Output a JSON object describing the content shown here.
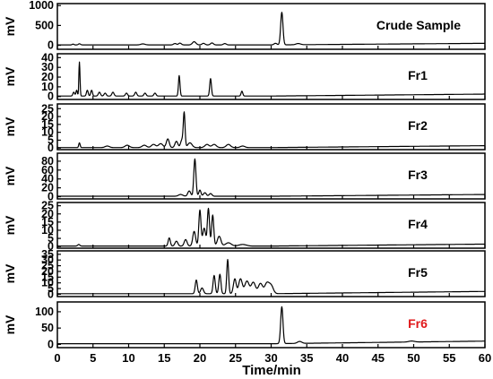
{
  "chart_data": {
    "type": "line",
    "xlabel": "Time/min",
    "xlim": [
      0,
      60
    ],
    "xticks": [
      0,
      5,
      10,
      15,
      20,
      25,
      30,
      35,
      40,
      45,
      50,
      55,
      60
    ],
    "colors": {
      "line": "#000000",
      "frame": "#000000",
      "fr6_label": "#e0191b",
      "label": "#000000"
    },
    "panels": [
      {
        "name": "Crude Sample",
        "label_color": "#000000",
        "ylabel": "mV",
        "ylim": [
          -100,
          1050
        ],
        "yticks": [
          0,
          500,
          1000
        ],
        "baseline": 10,
        "peaks": [
          [
            2.2,
            20,
            0.12
          ],
          [
            3.1,
            30,
            0.15
          ],
          [
            12,
            25,
            0.3
          ],
          [
            16.5,
            35,
            0.2
          ],
          [
            17.2,
            45,
            0.2
          ],
          [
            19.2,
            80,
            0.25
          ],
          [
            20.5,
            40,
            0.2
          ],
          [
            21.7,
            50,
            0.2
          ],
          [
            23.5,
            35,
            0.2
          ],
          [
            30.6,
            40,
            0.2
          ],
          [
            31.5,
            820,
            0.16
          ],
          [
            33.8,
            30,
            0.3
          ]
        ]
      },
      {
        "name": "Fr1",
        "label_color": "#000000",
        "ylabel": "mV",
        "ylim": [
          -3,
          44
        ],
        "yticks": [
          0,
          10,
          20,
          30,
          40
        ],
        "baseline": 0.5,
        "peaks": [
          [
            2.3,
            4,
            0.12
          ],
          [
            2.7,
            6,
            0.1
          ],
          [
            3.1,
            35,
            0.08
          ],
          [
            4.2,
            6,
            0.12
          ],
          [
            4.8,
            6,
            0.12
          ],
          [
            5.9,
            4,
            0.15
          ],
          [
            6.7,
            3,
            0.15
          ],
          [
            7.8,
            4,
            0.15
          ],
          [
            9.7,
            3,
            0.15
          ],
          [
            11,
            4,
            0.15
          ],
          [
            12.3,
            3,
            0.15
          ],
          [
            13.7,
            3,
            0.15
          ],
          [
            17.1,
            21,
            0.11
          ],
          [
            21.5,
            18,
            0.12
          ],
          [
            25.9,
            5,
            0.12
          ]
        ]
      },
      {
        "name": "Fr2",
        "label_color": "#000000",
        "ylabel": "mV",
        "ylim": [
          -1,
          28
        ],
        "yticks": [
          0,
          5,
          10,
          15,
          20,
          25
        ],
        "baseline": 0.3,
        "peaks": [
          [
            3.1,
            3,
            0.1
          ],
          [
            7,
            1,
            0.3
          ],
          [
            9.8,
            1.5,
            0.3
          ],
          [
            12.2,
            1.5,
            0.3
          ],
          [
            13.5,
            2,
            0.3
          ],
          [
            14.5,
            2.5,
            0.3
          ],
          [
            15.5,
            5.5,
            0.2
          ],
          [
            16.7,
            4,
            0.2
          ],
          [
            17.5,
            5,
            0.2
          ],
          [
            17.8,
            21,
            0.12
          ],
          [
            18.6,
            3,
            0.3
          ],
          [
            21,
            2,
            0.3
          ],
          [
            22,
            2,
            0.3
          ],
          [
            24,
            2,
            0.3
          ],
          [
            26,
            1,
            0.3
          ]
        ]
      },
      {
        "name": "Fr3",
        "label_color": "#000000",
        "ylabel": "mV",
        "ylim": [
          -5,
          98
        ],
        "yticks": [
          0,
          20,
          40,
          60,
          80
        ],
        "baseline": 1,
        "peaks": [
          [
            17.3,
            4,
            0.3
          ],
          [
            18.5,
            12,
            0.2
          ],
          [
            19.3,
            84,
            0.15
          ],
          [
            20,
            14,
            0.15
          ],
          [
            20.7,
            8,
            0.2
          ],
          [
            21.5,
            6,
            0.2
          ]
        ]
      },
      {
        "name": "Fr4",
        "label_color": "#000000",
        "ylabel": "mV",
        "ylim": [
          -1,
          27
        ],
        "yticks": [
          0,
          5,
          10,
          15,
          20,
          25
        ],
        "baseline": 0.3,
        "peaks": [
          [
            3,
            1,
            0.15
          ],
          [
            15.7,
            5,
            0.15
          ],
          [
            16.7,
            3,
            0.2
          ],
          [
            18,
            4,
            0.2
          ],
          [
            19.2,
            9,
            0.2
          ],
          [
            20,
            22,
            0.15
          ],
          [
            20.6,
            11,
            0.2
          ],
          [
            21.2,
            23,
            0.15
          ],
          [
            21.8,
            19,
            0.15
          ],
          [
            22.7,
            6,
            0.25
          ],
          [
            24,
            2,
            0.4
          ],
          [
            26,
            1,
            0.5
          ]
        ]
      },
      {
        "name": "Fr5",
        "label_color": "#000000",
        "ylabel": "mV",
        "ylim": [
          -2,
          38
        ],
        "yticks": [
          0,
          5,
          10,
          15,
          20,
          25,
          30,
          35
        ],
        "baseline": 0.5,
        "peaks": [
          [
            19.5,
            12,
            0.15
          ],
          [
            20.3,
            5,
            0.2
          ],
          [
            22,
            16,
            0.15
          ],
          [
            22.8,
            17,
            0.15
          ],
          [
            23.9,
            30,
            0.13
          ],
          [
            24.9,
            13,
            0.2
          ],
          [
            25.7,
            13,
            0.25
          ],
          [
            26.6,
            11,
            0.3
          ],
          [
            27.5,
            10,
            0.3
          ],
          [
            28.5,
            9,
            0.3
          ],
          [
            29.4,
            9,
            0.3
          ],
          [
            30,
            7,
            0.3
          ]
        ]
      },
      {
        "name": "Fr6",
        "label_color": "#e0191b",
        "ylabel": "mV",
        "ylim": [
          -10,
          130
        ],
        "yticks": [
          0,
          50,
          100
        ],
        "baseline": 2,
        "peaks": [
          [
            31.5,
            113,
            0.16
          ],
          [
            34,
            6,
            0.3
          ],
          [
            49.7,
            3,
            0.4
          ]
        ]
      }
    ]
  }
}
